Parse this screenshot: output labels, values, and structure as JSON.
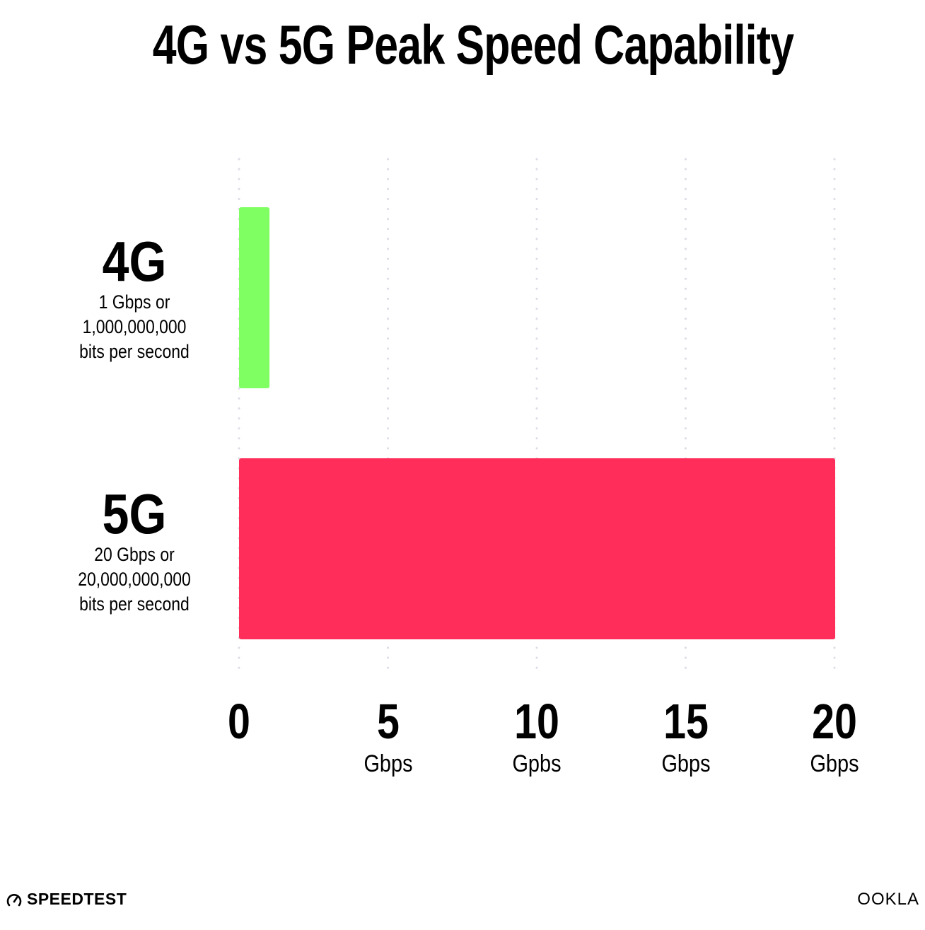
{
  "chart_data": {
    "type": "bar",
    "orientation": "horizontal",
    "title": "4G vs 5G Peak Speed Capability",
    "categories": [
      {
        "label": "4G",
        "sublabel": [
          "1 Gbps or",
          "1,000,000,000",
          "bits per second"
        ]
      },
      {
        "label": "5G",
        "sublabel": [
          "20 Gbps or",
          "20,000,000,000",
          "bits per second"
        ]
      }
    ],
    "values": [
      1,
      20
    ],
    "colors": [
      "#80ff62",
      "#ff2d5a"
    ],
    "xlim": [
      0,
      20
    ],
    "xticks": [
      {
        "value": 0,
        "label": "0",
        "unit": ""
      },
      {
        "value": 5,
        "label": "5",
        "unit": "Gbps"
      },
      {
        "value": 10,
        "label": "10",
        "unit": "Gpbs"
      },
      {
        "value": 15,
        "label": "15",
        "unit": "Gbps"
      },
      {
        "value": 20,
        "label": "20",
        "unit": "Gbps"
      }
    ],
    "grid": "vertical dotted",
    "gridColor": "#dcdce6"
  },
  "branding": {
    "left": "SPEEDTEST",
    "right": "OOKLA"
  }
}
